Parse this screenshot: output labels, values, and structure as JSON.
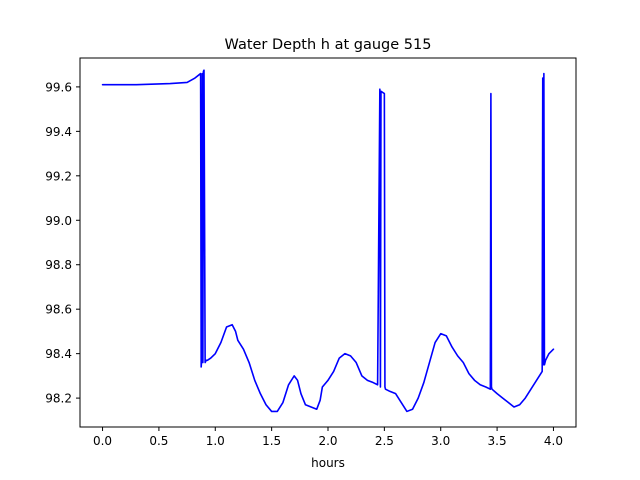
{
  "chart_data": {
    "type": "line",
    "title": "Water Depth h at gauge 515",
    "xlabel": "hours",
    "ylabel": "",
    "xlim": [
      -0.2,
      4.2
    ],
    "ylim": [
      98.07,
      99.73
    ],
    "xticks": [
      0.0,
      0.5,
      1.0,
      1.5,
      2.0,
      2.5,
      3.0,
      3.5,
      4.0
    ],
    "xtick_labels": [
      "0.0",
      "0.5",
      "1.0",
      "1.5",
      "2.0",
      "2.5",
      "3.0",
      "3.5",
      "4.0"
    ],
    "yticks": [
      98.2,
      98.4,
      98.6,
      98.8,
      99.0,
      99.2,
      99.4,
      99.6
    ],
    "ytick_labels": [
      "98.2",
      "98.4",
      "98.6",
      "98.8",
      "99.0",
      "99.2",
      "99.4",
      "99.6"
    ],
    "grid": false,
    "series": [
      {
        "color": "#0000ff",
        "x": [
          0.0,
          0.3,
          0.6,
          0.75,
          0.82,
          0.87,
          0.875,
          0.88,
          0.885,
          0.89,
          0.895,
          0.9,
          0.91,
          0.92,
          0.93,
          0.96,
          1.0,
          1.05,
          1.1,
          1.15,
          1.18,
          1.2,
          1.25,
          1.3,
          1.35,
          1.4,
          1.45,
          1.5,
          1.55,
          1.6,
          1.65,
          1.7,
          1.73,
          1.76,
          1.8,
          1.85,
          1.9,
          1.93,
          1.95,
          2.0,
          2.05,
          2.1,
          2.15,
          2.2,
          2.25,
          2.3,
          2.35,
          2.4,
          2.44,
          2.46,
          2.465,
          2.47,
          2.5,
          2.505,
          2.51,
          2.55,
          2.6,
          2.65,
          2.7,
          2.75,
          2.8,
          2.85,
          2.9,
          2.95,
          3.0,
          3.05,
          3.1,
          3.15,
          3.2,
          3.25,
          3.3,
          3.35,
          3.4,
          3.44,
          3.445,
          3.45,
          3.455,
          3.5,
          3.55,
          3.6,
          3.65,
          3.7,
          3.75,
          3.8,
          3.85,
          3.9,
          3.905,
          3.91,
          3.915,
          3.92,
          3.93,
          3.96,
          4.0
        ],
        "y": [
          99.61,
          99.61,
          99.615,
          99.62,
          99.64,
          99.66,
          98.34,
          98.38,
          99.66,
          98.36,
          99.67,
          99.675,
          98.36,
          98.37,
          98.37,
          98.38,
          98.4,
          98.45,
          98.52,
          98.53,
          98.5,
          98.46,
          98.42,
          98.36,
          98.28,
          98.22,
          98.17,
          98.14,
          98.14,
          98.18,
          98.26,
          98.3,
          98.28,
          98.22,
          98.17,
          98.16,
          98.15,
          98.19,
          98.25,
          98.28,
          98.32,
          98.38,
          98.4,
          98.39,
          98.36,
          98.3,
          98.28,
          98.27,
          98.26,
          99.59,
          98.25,
          99.58,
          99.57,
          98.25,
          98.24,
          98.23,
          98.22,
          98.18,
          98.14,
          98.15,
          98.2,
          98.27,
          98.36,
          98.45,
          98.49,
          98.48,
          98.43,
          98.39,
          98.36,
          98.31,
          98.28,
          98.26,
          98.25,
          98.24,
          99.57,
          98.25,
          98.24,
          98.22,
          98.2,
          98.18,
          98.16,
          98.17,
          98.2,
          98.24,
          98.28,
          98.32,
          99.64,
          98.35,
          99.66,
          98.35,
          98.37,
          98.4,
          98.42
        ]
      }
    ]
  }
}
